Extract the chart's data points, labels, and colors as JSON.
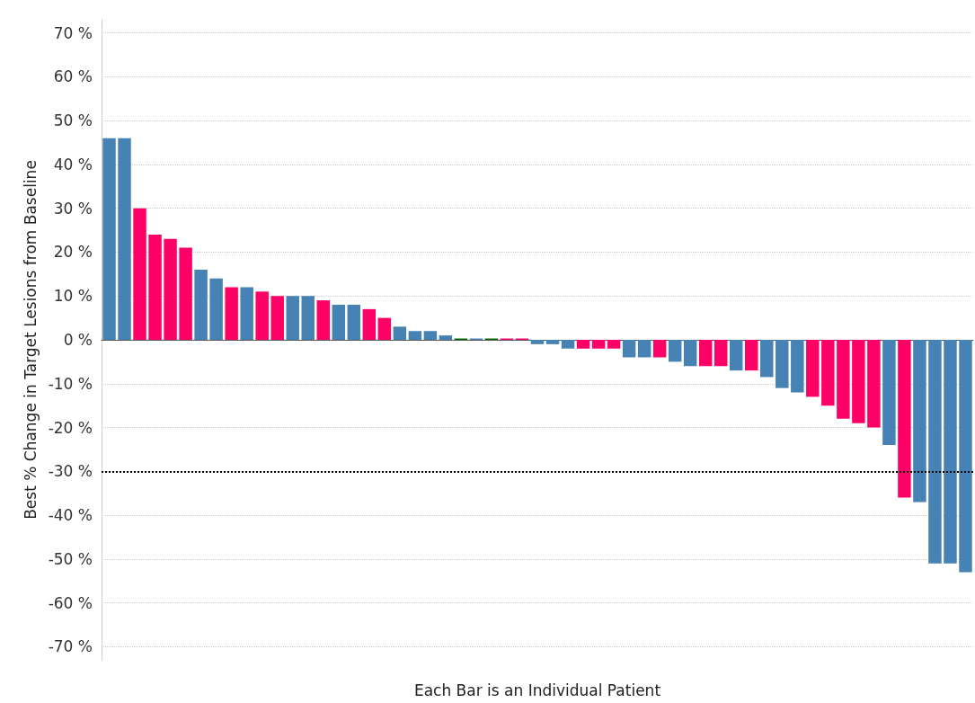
{
  "chart_data": {
    "type": "bar",
    "xlabel": "Each Bar is an Individual Patient",
    "ylabel": "Best % Change in Target Lesions from Baseline",
    "categories": [
      null,
      null,
      null,
      null,
      null,
      null,
      null,
      null,
      null,
      null,
      null,
      null,
      null,
      null,
      null,
      null,
      null,
      null,
      null,
      null,
      null,
      null,
      null,
      null,
      null,
      null,
      null,
      null,
      null,
      null,
      null,
      null,
      null,
      null,
      null,
      null,
      null,
      null,
      null,
      null,
      null,
      null,
      null,
      null,
      null,
      null,
      null,
      null,
      null,
      null,
      null,
      null,
      null,
      null,
      null,
      null,
      null
    ],
    "values": [
      46,
      46,
      30,
      24,
      23,
      21,
      16,
      14,
      12,
      12,
      11,
      10,
      10,
      10,
      9,
      8,
      8,
      7,
      5,
      3,
      2,
      2,
      1,
      0.3,
      0.3,
      0.3,
      0.3,
      0.3,
      -1,
      -1,
      -2,
      -2,
      -2,
      -2,
      -4,
      -4,
      -4,
      -5,
      -6,
      -6,
      -6,
      -7,
      -7,
      -8.5,
      -11,
      -12,
      -13,
      -15,
      -18,
      -19,
      -20,
      -24,
      -36,
      -37,
      -51,
      -51,
      -53
    ],
    "colors": [
      "#4682b4",
      "#4682b4",
      "#ff0066",
      "#ff0066",
      "#ff0066",
      "#ff0066",
      "#4682b4",
      "#4682b4",
      "#ff0066",
      "#4682b4",
      "#ff0066",
      "#ff0066",
      "#4682b4",
      "#4682b4",
      "#ff0066",
      "#4682b4",
      "#4682b4",
      "#ff0066",
      "#ff0066",
      "#4682b4",
      "#4682b4",
      "#4682b4",
      "#4682b4",
      "#006400",
      "#4682b4",
      "#006400",
      "#ff0066",
      "#ff0066",
      "#4682b4",
      "#4682b4",
      "#4682b4",
      "#ff0066",
      "#ff0066",
      "#ff0066",
      "#4682b4",
      "#4682b4",
      "#ff0066",
      "#4682b4",
      "#4682b4",
      "#ff0066",
      "#ff0066",
      "#4682b4",
      "#ff0066",
      "#4682b4",
      "#4682b4",
      "#4682b4",
      "#ff0066",
      "#ff0066",
      "#ff0066",
      "#ff0066",
      "#ff0066",
      "#4682b4",
      "#ff0066",
      "#4682b4",
      "#4682b4",
      "#4682b4",
      "#4682b4"
    ],
    "ylim": [
      -73,
      73
    ],
    "yticks": [
      {
        "value": -70,
        "label": "-70 %"
      },
      {
        "value": -60,
        "label": "-60 %"
      },
      {
        "value": -50,
        "label": "-50 %"
      },
      {
        "value": -40,
        "label": "-40 %"
      },
      {
        "value": -30,
        "label": "-30 %"
      },
      {
        "value": -20,
        "label": "-20 %"
      },
      {
        "value": -10,
        "label": "-10 %"
      },
      {
        "value": 0,
        "label": "0 %"
      },
      {
        "value": 10,
        "label": "10 %"
      },
      {
        "value": 20,
        "label": "20 %"
      },
      {
        "value": 30,
        "label": "30 %"
      },
      {
        "value": 40,
        "label": "40 %"
      },
      {
        "value": 50,
        "label": "50 %"
      },
      {
        "value": 60,
        "label": "60 %"
      },
      {
        "value": 70,
        "label": "70 %"
      }
    ],
    "grid": "y",
    "ref_lines": [
      {
        "axis": "y",
        "value": -30,
        "color": "#000000",
        "line_style": "dotted"
      }
    ]
  }
}
